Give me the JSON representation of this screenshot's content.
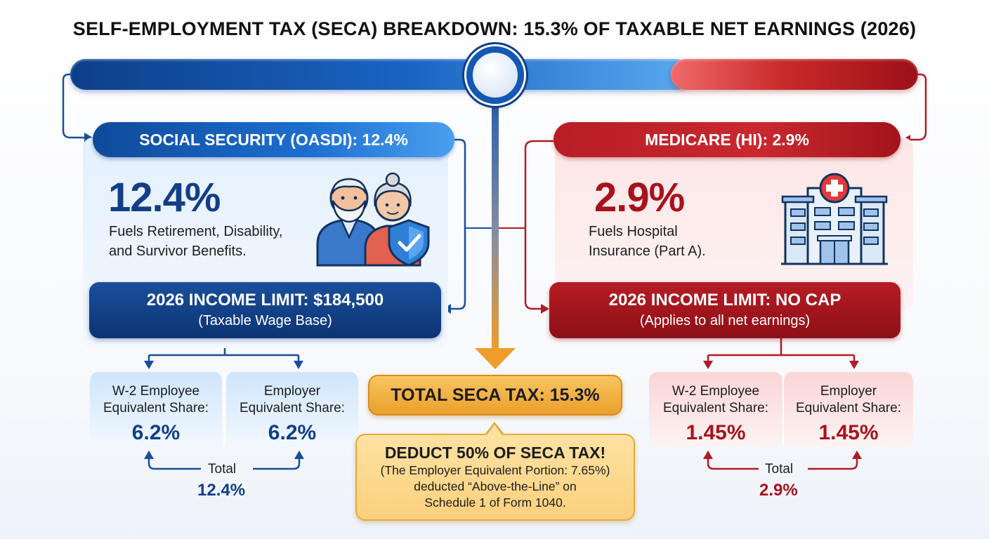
{
  "title": "SELF-EMPLOYMENT TAX (SECA) BREAKDOWN: 15.3% OF TAXABLE NET EARNINGS (2026)",
  "social_security": {
    "header": "SOCIAL SECURITY (OASDI): 12.4%",
    "percent": "12.4%",
    "description_line1": "Fuels Retirement, Disability,",
    "description_line2": "and Survivor Benefits.",
    "icon": "seniors-shield-icon",
    "income_limit_title": "2026 INCOME LIMIT: $184,500",
    "income_limit_sub": "(Taxable Wage Base)",
    "employee_share_line1": "W-2 Employee",
    "employee_share_line2": "Equivalent Share:",
    "employee_share_value": "6.2%",
    "employer_share_line1": "Employer",
    "employer_share_line2": "Equivalent Share:",
    "employer_share_value": "6.2%",
    "total_label": "Total",
    "total_value": "12.4%"
  },
  "medicare": {
    "header": "MEDICARE (HI): 2.9%",
    "percent": "2.9%",
    "description_line1": "Fuels Hospital",
    "description_line2": "Insurance (Part A).",
    "icon": "hospital-icon",
    "income_limit_title": "2026 INCOME LIMIT: NO CAP",
    "income_limit_sub": "(Applies to all net earnings)",
    "employee_share_line1": "W-2 Employee",
    "employee_share_line2": "Equivalent Share:",
    "employee_share_value": "1.45%",
    "employer_share_line1": "Employer",
    "employer_share_line2": "Equivalent Share:",
    "employer_share_value": "1.45%",
    "total_label": "Total",
    "total_value": "2.9%"
  },
  "total_seca": "TOTAL SECA TAX: 15.3%",
  "deduction": {
    "title": "DEDUCT 50% OF SECA TAX!",
    "line1": "(The Employer Equivalent Portion: 7.65%)",
    "line2": "deducted “Above-the-Line” on",
    "line3": "Schedule 1 of Form 1040."
  },
  "colors": {
    "blue_dark": "#123f86",
    "blue_mid": "#1d6fd0",
    "red_dark": "#a8121c",
    "red_mid": "#c9282f",
    "orange": "#eaa02b"
  }
}
